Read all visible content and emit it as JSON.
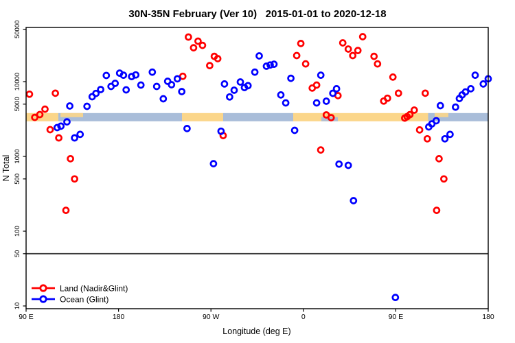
{
  "title": "30N-35N February (Ver 10)   2015-01-01 to 2020-12-18",
  "axes": {
    "xlabel": "Longitude (deg E)",
    "ylabel": "N Total"
  },
  "legend": {
    "land_label": "Land (Nadir&Glint)",
    "ocean_label": "Ocean (Glint)"
  },
  "colors": {
    "land": "#ff0000",
    "ocean": "#0000ff",
    "band_land": "#fbd68a",
    "band_ocean": "#a9bdd9",
    "reference_line": "#3a3a3a",
    "axis": "#000000"
  },
  "chart_data": {
    "type": "scatter",
    "title": "30N-35N February (Ver 10)   2015-01-01 to 2020-12-18",
    "xlabel": "Longitude (deg E)",
    "ylabel": "N Total",
    "x_axis": {
      "note": "axis spans 450 deg eastward starting at 90E; tick spacing 90 deg",
      "range_deg": [
        0,
        450
      ],
      "ticks_deg": [
        0,
        90,
        180,
        270,
        360,
        450
      ],
      "tick_labels": [
        "90 E",
        "180",
        "90 W",
        "0",
        "90 E",
        "180"
      ]
    },
    "y_axis": {
      "scale": "log10",
      "range": [
        10,
        50000
      ],
      "ticks": [
        10,
        50,
        100,
        500,
        1000,
        5000,
        10000,
        50000
      ]
    },
    "grid": false,
    "legend_position": "bottom-left",
    "reference_line_y": 50,
    "surface_band": {
      "value_top": 3800,
      "value_bottom": 2950,
      "segments": [
        {
          "from_deg": 0,
          "to_deg": 31.4,
          "type": "land"
        },
        {
          "from_deg": 31.4,
          "to_deg": 151.8,
          "type": "ocean"
        },
        {
          "from_deg": 151.8,
          "to_deg": 191.9,
          "type": "land"
        },
        {
          "from_deg": 191.9,
          "to_deg": 260.1,
          "type": "ocean"
        },
        {
          "from_deg": 260.1,
          "to_deg": 391.5,
          "type": "land"
        },
        {
          "from_deg": 391.5,
          "to_deg": 450,
          "type": "ocean"
        }
      ],
      "patches": [
        {
          "from_deg": 33.5,
          "to_deg": 55.5,
          "type": "land",
          "half": "top"
        },
        {
          "from_deg": 287.5,
          "to_deg": 303.6,
          "type": "ocean",
          "half": "bottom"
        },
        {
          "from_deg": 397.8,
          "to_deg": 411.2,
          "type": "land",
          "half": "top"
        }
      ]
    },
    "series": [
      {
        "name": "Land (Nadir&Glint)",
        "color": "#ff0000",
        "marker": "open-circle",
        "points": [
          [
            3.3,
            6800
          ],
          [
            8.4,
            3330
          ],
          [
            13.4,
            3630
          ],
          [
            18.4,
            4290
          ],
          [
            23.4,
            2280
          ],
          [
            28.5,
            7000
          ],
          [
            31.8,
            1770
          ],
          [
            38.8,
            190
          ],
          [
            43.2,
            930
          ],
          [
            47.2,
            500
          ],
          [
            152.6,
            11800
          ],
          [
            158.1,
            39500
          ],
          [
            163.1,
            28400
          ],
          [
            167.4,
            34800
          ],
          [
            171.8,
            30600
          ],
          [
            178.8,
            16400
          ],
          [
            183.3,
            21800
          ],
          [
            186.6,
            20300
          ],
          [
            191.9,
            1900
          ],
          [
            263.5,
            22300
          ],
          [
            267.5,
            32400
          ],
          [
            272.2,
            17300
          ],
          [
            278.6,
            8200
          ],
          [
            282.9,
            9000
          ],
          [
            286.9,
            1220
          ],
          [
            292.3,
            3590
          ],
          [
            297.0,
            3300
          ],
          [
            303.7,
            6500
          ],
          [
            308.4,
            33000
          ],
          [
            313.7,
            27300
          ],
          [
            318.1,
            22300
          ],
          [
            323.1,
            26100
          ],
          [
            327.8,
            39900
          ],
          [
            338.8,
            21800
          ],
          [
            342.2,
            17300
          ],
          [
            348.2,
            5500
          ],
          [
            351.9,
            6000
          ],
          [
            357.2,
            11500
          ],
          [
            362.6,
            7000
          ],
          [
            368.7,
            3260
          ],
          [
            371.0,
            3400
          ],
          [
            373.7,
            3620
          ],
          [
            378.0,
            4160
          ],
          [
            383.2,
            2260
          ],
          [
            388.7,
            7000
          ],
          [
            390.7,
            1720
          ],
          [
            399.8,
            190
          ],
          [
            402.1,
            930
          ],
          [
            406.8,
            500
          ]
        ]
      },
      {
        "name": "Ocean (Glint)",
        "color": "#0000ff",
        "marker": "open-circle",
        "points": [
          [
            30.3,
            2430
          ],
          [
            33.9,
            2540
          ],
          [
            39.8,
            2900
          ],
          [
            42.5,
            4720
          ],
          [
            47.2,
            1770
          ],
          [
            52.6,
            1970
          ],
          [
            59.3,
            4670
          ],
          [
            64.3,
            6280
          ],
          [
            68.0,
            6950
          ],
          [
            72.6,
            7840
          ],
          [
            78.1,
            12100
          ],
          [
            82.7,
            8630
          ],
          [
            86.7,
            9480
          ],
          [
            91.1,
            13000
          ],
          [
            94.8,
            12200
          ],
          [
            97.4,
            7760
          ],
          [
            102.8,
            11700
          ],
          [
            106.8,
            12300
          ],
          [
            111.8,
            9000
          ],
          [
            122.9,
            13400
          ],
          [
            127.2,
            8630
          ],
          [
            133.6,
            5900
          ],
          [
            137.9,
            10100
          ],
          [
            141.6,
            9100
          ],
          [
            147.3,
            10900
          ],
          [
            151.6,
            7360
          ],
          [
            156.7,
            2360
          ],
          [
            182.5,
            800
          ],
          [
            189.8,
            2170
          ],
          [
            193.2,
            9300
          ],
          [
            198.2,
            6240
          ],
          [
            202.6,
            7680
          ],
          [
            208.6,
            9890
          ],
          [
            212.6,
            8330
          ],
          [
            216.1,
            8820
          ],
          [
            222.7,
            13400
          ],
          [
            227.0,
            22100
          ],
          [
            234.0,
            16100
          ],
          [
            237.7,
            16700
          ],
          [
            241.4,
            17100
          ],
          [
            248.1,
            6640
          ],
          [
            252.8,
            5190
          ],
          [
            257.8,
            11100
          ],
          [
            261.5,
            2230
          ],
          [
            282.9,
            5190
          ],
          [
            287.0,
            12200
          ],
          [
            292.3,
            5480
          ],
          [
            298.7,
            6980
          ],
          [
            302.3,
            8030
          ],
          [
            304.7,
            790
          ],
          [
            313.7,
            760
          ],
          [
            318.8,
            256
          ],
          [
            359.6,
            13
          ],
          [
            392.1,
            2480
          ],
          [
            395.1,
            2720
          ],
          [
            399.4,
            3000
          ],
          [
            403.4,
            4770
          ],
          [
            407.8,
            1720
          ],
          [
            412.8,
            1970
          ],
          [
            418.2,
            4570
          ],
          [
            421.9,
            5950
          ],
          [
            424.6,
            6640
          ],
          [
            427.9,
            7280
          ],
          [
            433.0,
            8030
          ],
          [
            437.3,
            12200
          ],
          [
            445.2,
            9300
          ],
          [
            450.0,
            10900
          ]
        ]
      }
    ]
  }
}
